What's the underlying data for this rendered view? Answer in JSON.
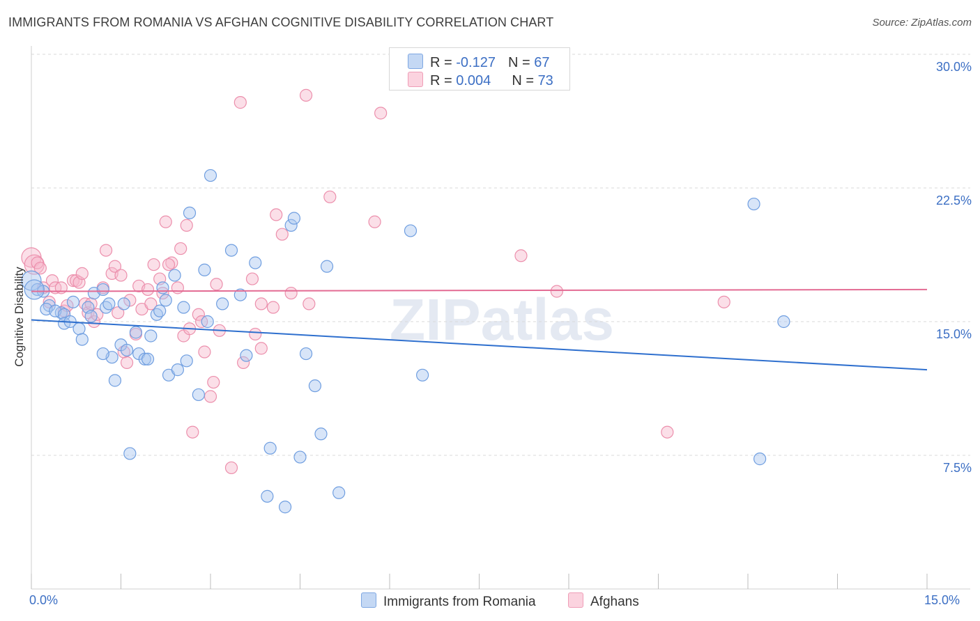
{
  "title": "IMMIGRANTS FROM ROMANIA VS AFGHAN COGNITIVE DISABILITY CORRELATION CHART",
  "source": "Source: ZipAtlas.com",
  "watermark": "ZIPatlas",
  "colors": {
    "blue_fill": "#a9c6ef",
    "blue_stroke": "#6f9ee0",
    "blue_line": "#2e6fce",
    "pink_fill": "#f6b8cb",
    "pink_stroke": "#ec8fac",
    "pink_line": "#e36b93",
    "accent_text": "#3c6fc4"
  },
  "legend": {
    "rows": [
      {
        "r_label": "R = ",
        "r_value": "-0.127",
        "n_label": "N = ",
        "n_value": "67",
        "color": "#a9c6ef"
      },
      {
        "r_label": "R = ",
        "r_value": "0.004",
        "n_label": "N = ",
        "n_value": "73",
        "color": "#f6b8cb"
      }
    ]
  },
  "bottom_legend": [
    {
      "label": "Immigrants from Romania",
      "color": "#a9c6ef"
    },
    {
      "label": "Afghans",
      "color": "#f6b8cb"
    }
  ],
  "chart_data": {
    "type": "scatter",
    "title": "IMMIGRANTS FROM ROMANIA VS AFGHAN COGNITIVE DISABILITY CORRELATION CHART",
    "xlabel": "",
    "ylabel": "Cognitive Disability",
    "xlim": [
      0,
      15
    ],
    "ylim": [
      0,
      30
    ],
    "x_tick_labels": [
      "0.0%",
      "15.0%"
    ],
    "y_ticks": [
      7.5,
      15.0,
      22.5,
      30.0
    ],
    "y_tick_labels": [
      "7.5%",
      "15.0%",
      "22.5%",
      "30.0%"
    ],
    "grid": true,
    "series": [
      {
        "name": "Immigrants from Romania",
        "R": -0.127,
        "N": 67,
        "trend": {
          "x": [
            0,
            15
          ],
          "y": [
            15.1,
            12.3
          ]
        },
        "points": [
          [
            0.0,
            17.3
          ],
          [
            0.1,
            16.8
          ],
          [
            0.2,
            16.7
          ],
          [
            0.3,
            15.9
          ],
          [
            0.25,
            15.7
          ],
          [
            0.5,
            15.5
          ],
          [
            0.4,
            15.6
          ],
          [
            0.55,
            15.4
          ],
          [
            0.55,
            14.9
          ],
          [
            0.65,
            15.0
          ],
          [
            0.8,
            14.6
          ],
          [
            0.7,
            16.1
          ],
          [
            0.85,
            14.0
          ],
          [
            0.95,
            15.8
          ],
          [
            1.05,
            16.6
          ],
          [
            1.2,
            16.8
          ],
          [
            1.25,
            15.8
          ],
          [
            1.3,
            16.0
          ],
          [
            1.35,
            13.0
          ],
          [
            1.4,
            11.7
          ],
          [
            1.5,
            13.7
          ],
          [
            1.6,
            13.4
          ],
          [
            1.55,
            16.0
          ],
          [
            1.65,
            7.6
          ],
          [
            1.75,
            14.4
          ],
          [
            1.8,
            13.2
          ],
          [
            1.9,
            12.9
          ],
          [
            1.95,
            12.9
          ],
          [
            2.0,
            14.2
          ],
          [
            2.1,
            15.4
          ],
          [
            2.2,
            16.9
          ],
          [
            2.25,
            16.2
          ],
          [
            2.3,
            12.0
          ],
          [
            2.4,
            17.6
          ],
          [
            2.45,
            12.3
          ],
          [
            2.55,
            15.8
          ],
          [
            2.6,
            12.8
          ],
          [
            2.65,
            21.1
          ],
          [
            2.8,
            10.9
          ],
          [
            2.9,
            17.9
          ],
          [
            2.95,
            15.0
          ],
          [
            3.0,
            23.2
          ],
          [
            3.2,
            16.0
          ],
          [
            3.35,
            19.0
          ],
          [
            3.5,
            16.5
          ],
          [
            3.6,
            13.1
          ],
          [
            3.75,
            18.3
          ],
          [
            3.95,
            5.2
          ],
          [
            4.0,
            7.9
          ],
          [
            4.25,
            4.6
          ],
          [
            4.35,
            20.4
          ],
          [
            4.4,
            20.8
          ],
          [
            4.5,
            7.4
          ],
          [
            4.6,
            13.2
          ],
          [
            4.75,
            11.4
          ],
          [
            4.85,
            8.7
          ],
          [
            4.95,
            18.1
          ],
          [
            5.15,
            5.4
          ],
          [
            6.35,
            20.1
          ],
          [
            6.55,
            12.0
          ],
          [
            12.1,
            21.6
          ],
          [
            12.2,
            7.3
          ],
          [
            12.6,
            15.0
          ],
          [
            0.05,
            16.8
          ],
          [
            1.0,
            15.3
          ],
          [
            2.15,
            15.6
          ],
          [
            1.2,
            13.2
          ]
        ]
      },
      {
        "name": "Afghans",
        "R": 0.004,
        "N": 73,
        "trend": {
          "x": [
            0,
            15
          ],
          "y": [
            16.7,
            16.8
          ]
        },
        "points": [
          [
            0.0,
            18.6
          ],
          [
            0.05,
            18.2
          ],
          [
            0.1,
            18.3
          ],
          [
            0.2,
            16.9
          ],
          [
            0.3,
            16.1
          ],
          [
            0.35,
            17.3
          ],
          [
            0.4,
            16.9
          ],
          [
            0.5,
            16.9
          ],
          [
            0.55,
            15.6
          ],
          [
            0.6,
            15.9
          ],
          [
            0.7,
            17.3
          ],
          [
            0.75,
            17.3
          ],
          [
            0.8,
            17.2
          ],
          [
            0.85,
            17.7
          ],
          [
            0.9,
            16.0
          ],
          [
            0.95,
            15.5
          ],
          [
            1.05,
            15.0
          ],
          [
            1.1,
            15.4
          ],
          [
            1.2,
            16.9
          ],
          [
            1.25,
            19.0
          ],
          [
            1.35,
            17.7
          ],
          [
            1.4,
            18.1
          ],
          [
            1.45,
            15.5
          ],
          [
            1.5,
            17.6
          ],
          [
            1.55,
            13.3
          ],
          [
            1.6,
            12.7
          ],
          [
            1.65,
            16.2
          ],
          [
            1.75,
            14.3
          ],
          [
            1.8,
            17.0
          ],
          [
            1.85,
            15.7
          ],
          [
            1.95,
            16.8
          ],
          [
            2.0,
            16.0
          ],
          [
            2.05,
            18.2
          ],
          [
            2.15,
            17.4
          ],
          [
            2.2,
            16.6
          ],
          [
            2.25,
            20.6
          ],
          [
            2.35,
            18.3
          ],
          [
            2.45,
            16.9
          ],
          [
            2.5,
            19.1
          ],
          [
            2.55,
            14.2
          ],
          [
            2.6,
            20.4
          ],
          [
            2.65,
            14.6
          ],
          [
            2.7,
            8.8
          ],
          [
            2.8,
            15.4
          ],
          [
            2.85,
            15.0
          ],
          [
            2.9,
            13.3
          ],
          [
            3.0,
            10.8
          ],
          [
            3.05,
            11.6
          ],
          [
            3.1,
            17.1
          ],
          [
            3.15,
            14.5
          ],
          [
            3.35,
            6.8
          ],
          [
            3.5,
            27.3
          ],
          [
            3.55,
            12.7
          ],
          [
            3.7,
            17.4
          ],
          [
            3.75,
            14.3
          ],
          [
            3.85,
            13.5
          ],
          [
            4.05,
            15.8
          ],
          [
            4.1,
            21.0
          ],
          [
            4.2,
            19.9
          ],
          [
            4.35,
            16.6
          ],
          [
            4.6,
            27.7
          ],
          [
            4.65,
            16.0
          ],
          [
            5.0,
            22.0
          ],
          [
            5.75,
            20.6
          ],
          [
            5.85,
            26.7
          ],
          [
            8.2,
            18.7
          ],
          [
            8.8,
            16.7
          ],
          [
            10.65,
            8.8
          ],
          [
            11.6,
            16.1
          ],
          [
            0.15,
            18.0
          ],
          [
            1.0,
            16.0
          ],
          [
            2.3,
            18.2
          ],
          [
            3.85,
            16.0
          ]
        ]
      }
    ]
  }
}
